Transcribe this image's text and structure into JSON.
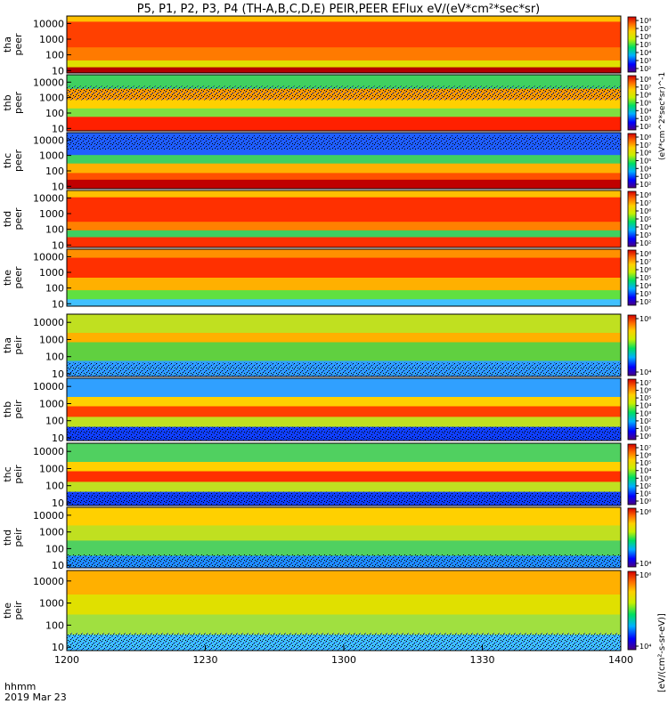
{
  "chart_data": {
    "type": "heatmap",
    "title": "P5, P1, P2, P3, P4 (TH-A,B,C,D,E) PEIR,PEER EFlux eV/(eV*cm²*sec*sr)",
    "xlabel": "hhmm",
    "date_label": "2019 Mar 23",
    "x_ticks": [
      "1200",
      "1230",
      "1300",
      "1330",
      "1400"
    ],
    "x_range": [
      "12:00",
      "14:00"
    ],
    "y_ticks": [
      "10000",
      "1000",
      "100",
      "10"
    ],
    "y_scale": "log",
    "y_range": [
      7,
      30000
    ],
    "colorbar_label": "[eV/(cm²-s-sr-eV)]",
    "colorbar_label_top": "(eV*cm^2*sec*sr)^-1",
    "panels": [
      {
        "name": "tha peer",
        "label1": "tha",
        "label2": "peer",
        "cmin": 2,
        "cmax": 8,
        "cb_ticks": [
          "10⁸",
          "10⁷",
          "10⁶",
          "10⁵",
          "10⁴",
          "10³",
          "10²"
        ]
      },
      {
        "name": "thb peer",
        "label1": "thb",
        "label2": "peer",
        "cmin": 2,
        "cmax": 8,
        "cb_ticks": [
          "10⁸",
          "10⁷",
          "10⁶",
          "10⁵",
          "10⁴",
          "10³",
          "10²"
        ]
      },
      {
        "name": "thc peer",
        "label1": "thc",
        "label2": "peer",
        "cmin": 2,
        "cmax": 8,
        "cb_ticks": [
          "10⁸",
          "10⁷",
          "10⁶",
          "10⁵",
          "10⁴",
          "10³",
          "10²"
        ]
      },
      {
        "name": "thd peer",
        "label1": "thd",
        "label2": "peer",
        "cmin": 2,
        "cmax": 8,
        "cb_ticks": [
          "10⁸",
          "10⁷",
          "10⁶",
          "10⁵",
          "10⁴",
          "10³",
          "10²"
        ]
      },
      {
        "name": "the peer",
        "label1": "the",
        "label2": "peer",
        "cmin": 2,
        "cmax": 8,
        "cb_ticks": [
          "10⁸",
          "10⁷",
          "10⁶",
          "10⁵",
          "10⁴",
          "10³",
          "10²"
        ]
      },
      {
        "name": "tha peir",
        "label1": "tha",
        "label2": "peir",
        "cmin": 3,
        "cmax": 7,
        "cb_ticks": [
          "10⁶",
          "10⁴"
        ]
      },
      {
        "name": "thb peir",
        "label1": "thb",
        "label2": "peir",
        "cmin": 0,
        "cmax": 7,
        "cb_ticks": [
          "10⁷",
          "10⁶",
          "10⁵",
          "10⁴",
          "10³",
          "10²",
          "10¹",
          "10⁰"
        ]
      },
      {
        "name": "thc peir",
        "label1": "thc",
        "label2": "peir",
        "cmin": 0,
        "cmax": 7,
        "cb_ticks": [
          "10⁷",
          "10⁶",
          "10⁵",
          "10⁴",
          "10³",
          "10²",
          "10¹",
          "10⁰"
        ]
      },
      {
        "name": "thd peir",
        "label1": "thd",
        "label2": "peir",
        "cmin": 3,
        "cmax": 7,
        "cb_ticks": [
          "10⁶",
          "10⁴"
        ]
      },
      {
        "name": "the peir",
        "label1": "the",
        "label2": "peir",
        "cmin": 3,
        "cmax": 7,
        "cb_ticks": [
          "10⁶",
          "10⁴"
        ]
      }
    ]
  }
}
